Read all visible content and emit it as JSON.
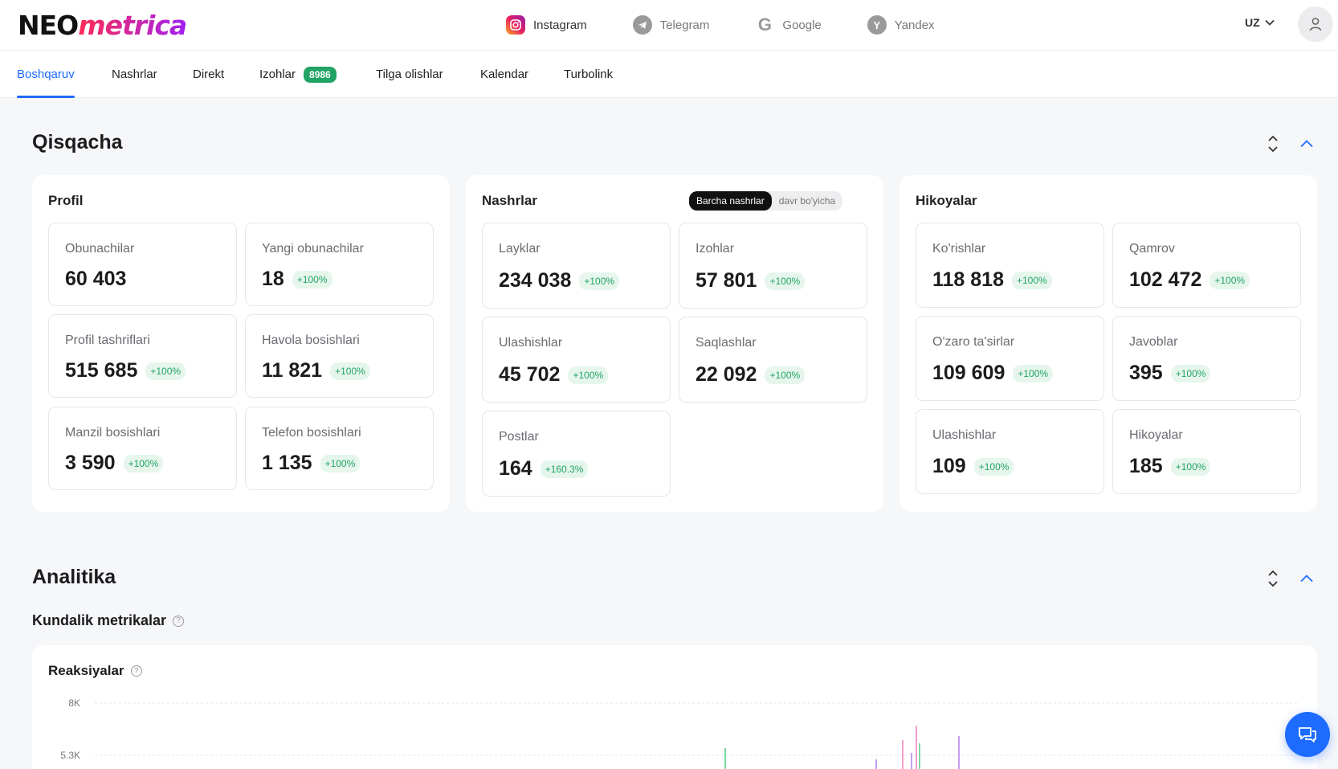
{
  "header": {
    "logo": {
      "part1": "NEO",
      "part2": "metrica"
    },
    "platforms": [
      {
        "label": "Instagram",
        "icon": "instagram-icon"
      },
      {
        "label": "Telegram",
        "icon": "telegram-icon"
      },
      {
        "label": "Google",
        "icon": "google-icon"
      },
      {
        "label": "Yandex",
        "icon": "yandex-icon"
      }
    ],
    "language": "UZ"
  },
  "tabs": [
    {
      "label": "Boshqaruv",
      "active": true
    },
    {
      "label": "Nashrlar"
    },
    {
      "label": "Direkt"
    },
    {
      "label": "Izohlar",
      "badge": "8986"
    },
    {
      "label": "Tilga olishlar"
    },
    {
      "label": "Kalendar"
    },
    {
      "label": "Turbolink"
    }
  ],
  "summary": {
    "title": "Qisqacha",
    "profile": {
      "title": "Profil",
      "metrics": [
        {
          "label": "Obunachilar",
          "value": "60 403",
          "change": ""
        },
        {
          "label": "Yangi obunachilar",
          "value": "18",
          "change": "+100%"
        },
        {
          "label": "Profil tashriflari",
          "value": "515 685",
          "change": "+100%"
        },
        {
          "label": "Havola bosishlari",
          "value": "11 821",
          "change": "+100%"
        },
        {
          "label": "Manzil bosishlari",
          "value": "3 590",
          "change": "+100%"
        },
        {
          "label": "Telefon bosishlari",
          "value": "1 135",
          "change": "+100%"
        }
      ]
    },
    "posts": {
      "title": "Nashrlar",
      "toggle": {
        "options": [
          "Barcha nashrlar",
          "davr bo'yicha"
        ],
        "selected": "Barcha nashrlar"
      },
      "metrics": [
        {
          "label": "Layklar",
          "value": "234 038",
          "change": "+100%"
        },
        {
          "label": "Izohlar",
          "value": "57 801",
          "change": "+100%"
        },
        {
          "label": "Ulashishlar",
          "value": "45 702",
          "change": "+100%"
        },
        {
          "label": "Saqlashlar",
          "value": "22 092",
          "change": "+100%"
        },
        {
          "label": "Postlar",
          "value": "164",
          "change": "+160.3%"
        }
      ]
    },
    "stories": {
      "title": "Hikoyalar",
      "metrics": [
        {
          "label": "Ko'rishlar",
          "value": "118 818",
          "change": "+100%"
        },
        {
          "label": "Qamrov",
          "value": "102 472",
          "change": "+100%"
        },
        {
          "label": "O'zaro ta'sirlar",
          "value": "109 609",
          "change": "+100%"
        },
        {
          "label": "Javoblar",
          "value": "395",
          "change": "+100%"
        },
        {
          "label": "Ulashishlar",
          "value": "109",
          "change": "+100%"
        },
        {
          "label": "Hikoyalar",
          "value": "185",
          "change": "+100%"
        }
      ]
    }
  },
  "analytics": {
    "title": "Analitika",
    "subtitle": "Kundalik metrikalar",
    "chart_title": "Reaksiyalar"
  },
  "chart_data": {
    "type": "bar",
    "title": "Reaksiyalar",
    "y_ticks": [
      "8K",
      "5.3K"
    ],
    "colors": {
      "green": "#7ed9a4",
      "purple": "#c59ef2",
      "pink": "#f29ecb"
    }
  },
  "colors": {
    "accent": "#1e6bff",
    "positive": "#21a366"
  }
}
